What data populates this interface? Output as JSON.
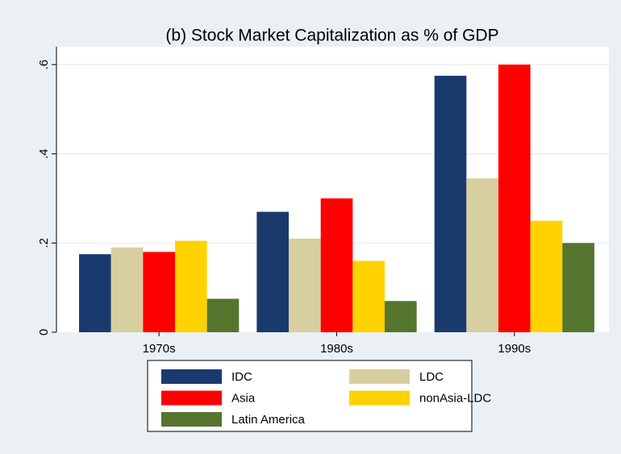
{
  "chart_data": {
    "type": "bar",
    "title": "(b) Stock Market Capitalization as % of GDP",
    "categories": [
      "1970s",
      "1980s",
      "1990s"
    ],
    "series": [
      {
        "name": "IDC",
        "color": "#1a3a6e",
        "values": [
          0.175,
          0.27,
          0.575
        ]
      },
      {
        "name": "LDC",
        "color": "#d8cfa0",
        "values": [
          0.19,
          0.21,
          0.345
        ]
      },
      {
        "name": "Asia",
        "color": "#ff0000",
        "values": [
          0.18,
          0.3,
          0.6
        ]
      },
      {
        "name": "nonAsia-LDC",
        "color": "#ffd200",
        "values": [
          0.205,
          0.16,
          0.25
        ]
      },
      {
        "name": "Latin America",
        "color": "#55752f",
        "values": [
          0.075,
          0.07,
          0.2
        ]
      }
    ],
    "ylim": [
      0,
      0.64
    ],
    "yticks": [
      0,
      {
        "value": 0.2,
        "label": ".2"
      },
      {
        "value": 0.4,
        "label": ".4"
      },
      {
        "value": 0.6,
        "label": ".6"
      }
    ],
    "grid": true
  }
}
